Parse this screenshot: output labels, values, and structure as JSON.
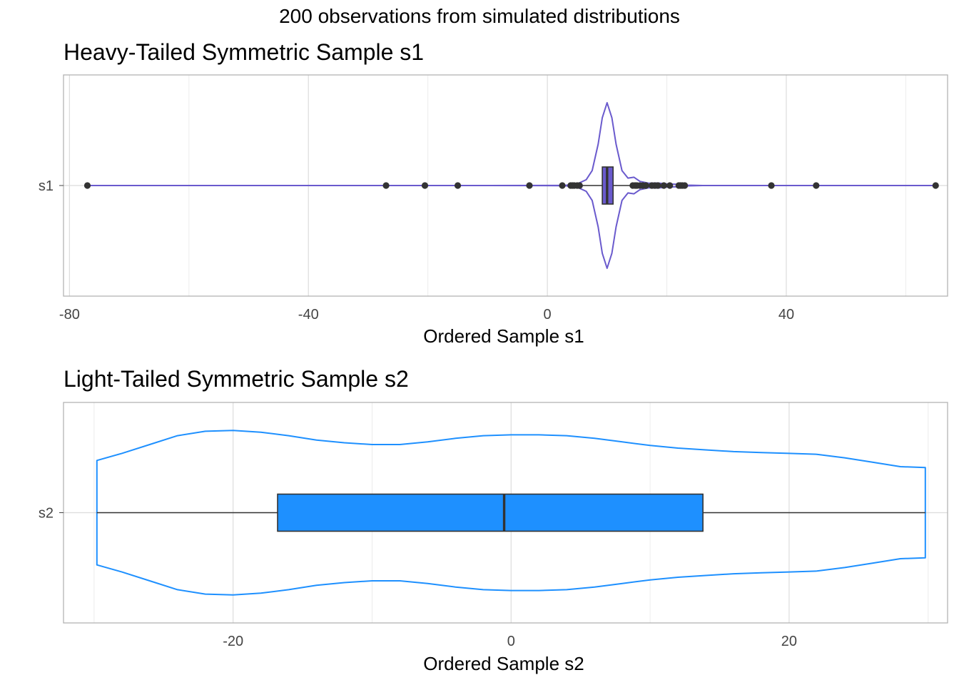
{
  "figure_title": "200 observations from simulated distributions",
  "chart_data": [
    {
      "type": "violin+box",
      "title": "Heavy-Tailed Symmetric Sample s1",
      "xlabel": "Ordered Sample s1",
      "ylabel": "",
      "category": "s1",
      "xlim": [
        -81,
        67
      ],
      "xticks": [
        -80,
        -40,
        0,
        40
      ],
      "xtick_labels": [
        "-80",
        "-40",
        "0",
        "40"
      ],
      "minor_xticks": [
        -60,
        -20,
        20,
        60
      ],
      "grid": true,
      "color": "#6A5ACD",
      "box": {
        "q1": 9.2,
        "median": 10.0,
        "q3": 11.0
      },
      "whiskers": [
        5.9,
        14.0
      ],
      "range": [
        -77,
        65
      ],
      "outliers": [
        -77,
        -27,
        -20.5,
        -15,
        -3,
        2.5,
        3.9,
        4.2,
        4.5,
        5.0,
        5.4,
        14.3,
        14.7,
        15.0,
        15.5,
        16.0,
        16.5,
        17.5,
        18.0,
        18.5,
        19.5,
        20.5,
        22.0,
        22.3,
        22.6,
        23.0,
        37.5,
        45.0,
        65.0
      ],
      "density": [
        [
          -77,
          0.0
        ],
        [
          -10,
          0.0
        ],
        [
          3,
          0.002
        ],
        [
          5,
          0.02
        ],
        [
          6.5,
          0.07
        ],
        [
          7.5,
          0.18
        ],
        [
          8.5,
          0.5
        ],
        [
          9.2,
          0.82
        ],
        [
          10.0,
          1.0
        ],
        [
          10.8,
          0.82
        ],
        [
          11.5,
          0.5
        ],
        [
          12.5,
          0.18
        ],
        [
          13.5,
          0.09
        ],
        [
          14.5,
          0.1
        ],
        [
          15.5,
          0.05
        ],
        [
          17.0,
          0.028
        ],
        [
          18.5,
          0.03
        ],
        [
          20.0,
          0.02
        ],
        [
          22.0,
          0.014
        ],
        [
          23.5,
          0.004
        ],
        [
          26,
          0.0
        ],
        [
          65,
          0.0
        ]
      ]
    },
    {
      "type": "violin+box",
      "title": "Light-Tailed Symmetric Sample s2",
      "xlabel": "Ordered Sample s2",
      "ylabel": "",
      "category": "s2",
      "xlim": [
        -32.2,
        31.4
      ],
      "xticks": [
        -20,
        0,
        20
      ],
      "xtick_labels": [
        "-20",
        "0",
        "20"
      ],
      "minor_xticks": [
        -30,
        -10,
        10,
        30
      ],
      "grid": true,
      "color": "#1E90FF",
      "box": {
        "q1": -16.8,
        "median": -0.5,
        "q3": 13.8
      },
      "whiskers": [
        -29.8,
        29.8
      ],
      "range": [
        -29.8,
        29.8
      ],
      "outliers": [],
      "density": [
        [
          -29.8,
          0.59
        ],
        [
          -28,
          0.67
        ],
        [
          -26,
          0.77
        ],
        [
          -24,
          0.87
        ],
        [
          -22,
          0.92
        ],
        [
          -20,
          0.93
        ],
        [
          -18,
          0.91
        ],
        [
          -16,
          0.87
        ],
        [
          -14,
          0.82
        ],
        [
          -12,
          0.79
        ],
        [
          -10,
          0.77
        ],
        [
          -8,
          0.77
        ],
        [
          -6,
          0.8
        ],
        [
          -4,
          0.84
        ],
        [
          -2,
          0.87
        ],
        [
          0,
          0.88
        ],
        [
          2,
          0.88
        ],
        [
          4,
          0.87
        ],
        [
          6,
          0.84
        ],
        [
          8,
          0.8
        ],
        [
          10,
          0.76
        ],
        [
          12,
          0.73
        ],
        [
          14,
          0.71
        ],
        [
          16,
          0.69
        ],
        [
          18,
          0.68
        ],
        [
          20,
          0.67
        ],
        [
          22,
          0.66
        ],
        [
          24,
          0.62
        ],
        [
          26,
          0.57
        ],
        [
          28,
          0.52
        ],
        [
          29.8,
          0.51
        ]
      ]
    }
  ]
}
